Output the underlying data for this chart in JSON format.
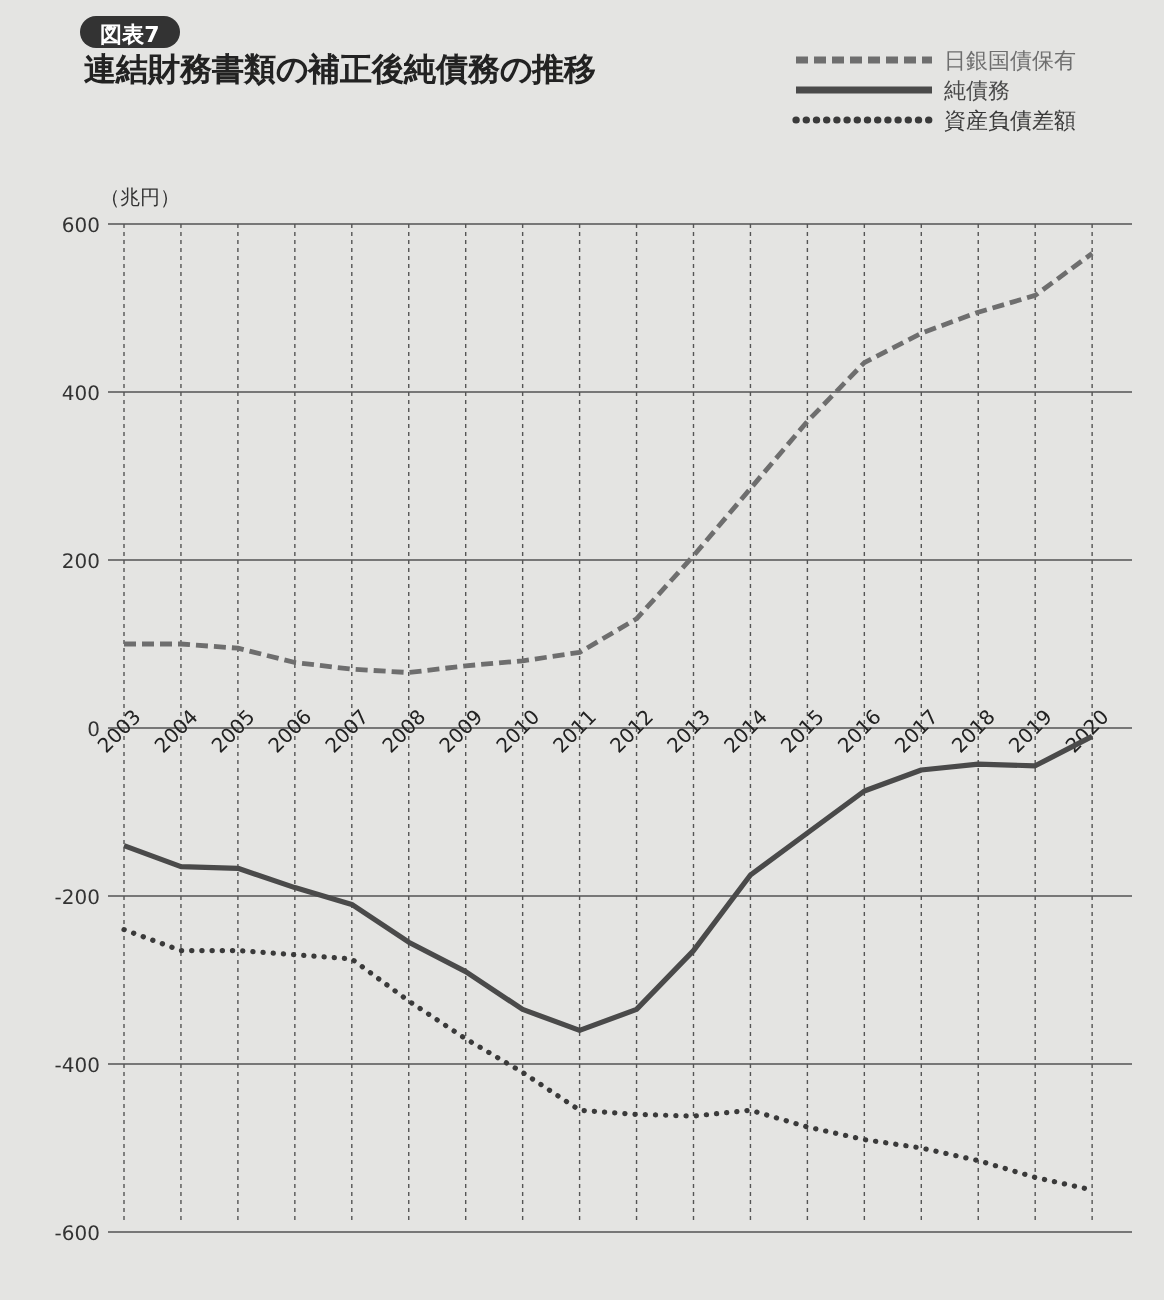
{
  "chart_data": {
    "type": "line",
    "title": "連結財務書類の補正後純債務の推移",
    "annotations": [
      "図表7"
    ],
    "ylabel": "（兆円）",
    "categories": [
      "2003",
      "2004",
      "2005",
      "2006",
      "2007",
      "2008",
      "2009",
      "2010",
      "2011",
      "2012",
      "2013",
      "2014",
      "2015",
      "2016",
      "2017",
      "2018",
      "2019",
      "2020"
    ],
    "series": [
      {
        "name": "日銀国債保有",
        "color": "#6e6e6e",
        "line_style": "dashed",
        "values": [
          100,
          100,
          95,
          78,
          70,
          66,
          74,
          80,
          90,
          130,
          205,
          285,
          365,
          435,
          470,
          495,
          515,
          565
        ]
      },
      {
        "name": "純債務",
        "color": "#4a4a4a",
        "line_style": "solid",
        "values": [
          -140,
          -165,
          -167,
          -190,
          -210,
          -255,
          -290,
          -335,
          -360,
          -335,
          -265,
          -175,
          -125,
          -75,
          -50,
          -43,
          -45,
          -10
        ]
      },
      {
        "name": "資産負債差額",
        "color": "#3a3a3a",
        "line_style": "dotted",
        "values": [
          -240,
          -265,
          -265,
          -270,
          -275,
          -325,
          -370,
          -410,
          -455,
          -460,
          -462,
          -455,
          -475,
          -490,
          -500,
          -515,
          -535,
          -550
        ]
      }
    ],
    "ylim": [
      -600,
      600
    ],
    "yticks": [
      -600,
      -400,
      -200,
      0,
      200,
      400,
      600
    ],
    "grid": true,
    "legend": "top right"
  }
}
